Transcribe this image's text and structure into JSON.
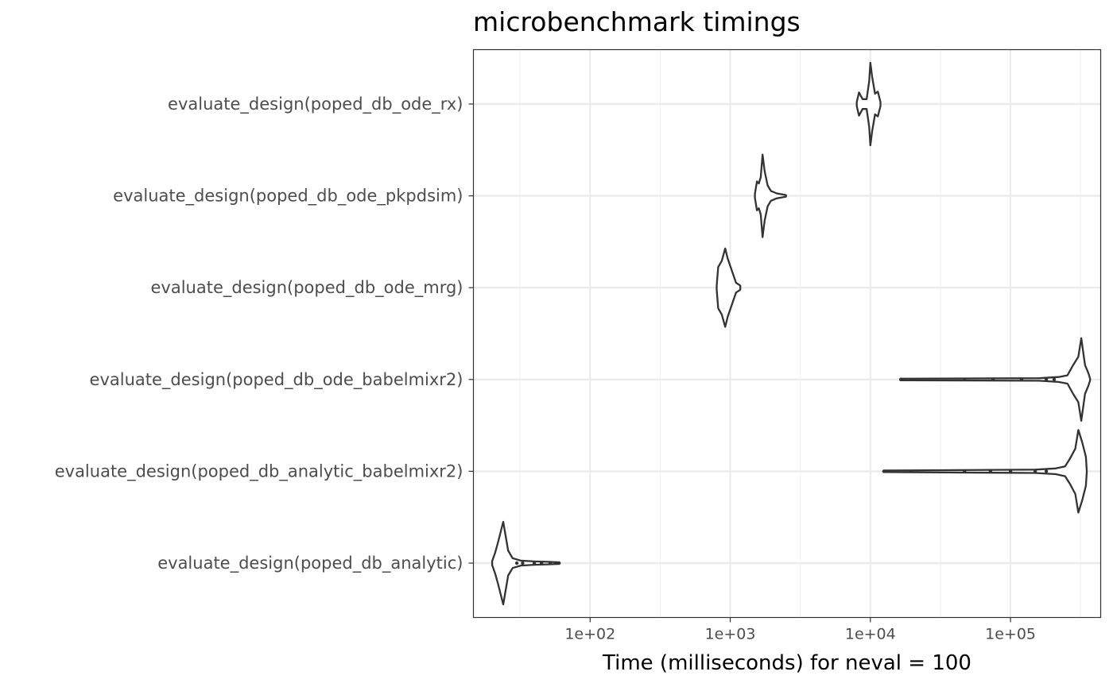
{
  "chart_data": {
    "type": "violin",
    "title": "microbenchmark timings",
    "xlabel": "Time (milliseconds) for neval = 100",
    "ylabel": "",
    "x_scale": "log10",
    "xlim": [
      14.7,
      440000
    ],
    "x_ticks": [
      100,
      1000,
      10000,
      100000
    ],
    "x_tick_labels": [
      "1e+02",
      "1e+03",
      "1e+04",
      "1e+05"
    ],
    "grid": true,
    "categories": [
      "evaluate_design(poped_db_ode_rx)",
      "evaluate_design(poped_db_ode_pkpdsim)",
      "evaluate_design(poped_db_ode_mrg)",
      "evaluate_design(poped_db_ode_babelmixr2)",
      "evaluate_design(poped_db_analytic_babelmixr2)",
      "evaluate_design(poped_db_analytic)"
    ],
    "series": [
      {
        "category": "evaluate_design(poped_db_ode_rx)",
        "min": 8000,
        "median": 10000,
        "max": 11800,
        "profile": [
          [
            8000,
            0.05
          ],
          [
            8300,
            0.28
          ],
          [
            8800,
            0.12
          ],
          [
            9400,
            0.12
          ],
          [
            9800,
            0.55
          ],
          [
            10000,
            1.0
          ],
          [
            10300,
            0.65
          ],
          [
            10800,
            0.25
          ],
          [
            11300,
            0.3
          ],
          [
            11800,
            0.05
          ]
        ]
      },
      {
        "category": "evaluate_design(poped_db_ode_pkpdsim)",
        "min": 1500,
        "median": 1700,
        "max": 2500,
        "profile": [
          [
            1500,
            0.05
          ],
          [
            1550,
            0.35
          ],
          [
            1600,
            0.3
          ],
          [
            1650,
            0.45
          ],
          [
            1700,
            1.0
          ],
          [
            1760,
            0.6
          ],
          [
            1850,
            0.25
          ],
          [
            1950,
            0.12
          ],
          [
            2150,
            0.06
          ],
          [
            2500,
            0.02
          ]
        ]
      },
      {
        "category": "evaluate_design(poped_db_ode_mrg)",
        "min": 800,
        "median": 920,
        "max": 1180,
        "profile": [
          [
            800,
            0.05
          ],
          [
            820,
            0.5
          ],
          [
            870,
            0.65
          ],
          [
            920,
            0.95
          ],
          [
            960,
            0.7
          ],
          [
            1030,
            0.4
          ],
          [
            1100,
            0.12
          ],
          [
            1180,
            0.05
          ]
        ]
      },
      {
        "category": "evaluate_design(poped_db_ode_babelmixr2)",
        "min": 16500,
        "median": 320000,
        "max": 370000,
        "outliers": [
          16500,
          47000,
          75000,
          120000,
          180000,
          205000
        ],
        "profile": [
          [
            16500,
            0.02
          ],
          [
            160000,
            0.03
          ],
          [
            220000,
            0.06
          ],
          [
            255000,
            0.1
          ],
          [
            280000,
            0.35
          ],
          [
            305000,
            0.55
          ],
          [
            320000,
            1.0
          ],
          [
            340000,
            0.35
          ],
          [
            360000,
            0.15
          ],
          [
            370000,
            0.02
          ]
        ]
      },
      {
        "category": "evaluate_design(poped_db_analytic_babelmixr2)",
        "min": 12500,
        "median": 300000,
        "max": 350000,
        "outliers": [
          12500,
          47000,
          72000,
          100000,
          150000,
          180000
        ],
        "profile": [
          [
            12500,
            0.02
          ],
          [
            150000,
            0.04
          ],
          [
            210000,
            0.07
          ],
          [
            245000,
            0.12
          ],
          [
            265000,
            0.3
          ],
          [
            290000,
            0.55
          ],
          [
            305000,
            1.0
          ],
          [
            325000,
            0.7
          ],
          [
            345000,
            0.35
          ],
          [
            350000,
            0.02
          ]
        ]
      },
      {
        "category": "evaluate_design(poped_db_analytic)",
        "min": 20,
        "median": 24,
        "max": 60,
        "outliers": [
          30,
          33,
          40,
          45,
          52,
          57,
          60
        ],
        "profile": [
          [
            20,
            0.05
          ],
          [
            21,
            0.25
          ],
          [
            22,
            0.5
          ],
          [
            24,
            1.0
          ],
          [
            26,
            0.3
          ],
          [
            28,
            0.12
          ],
          [
            32,
            0.06
          ],
          [
            40,
            0.04
          ],
          [
            50,
            0.03
          ],
          [
            60,
            0.02
          ]
        ]
      }
    ]
  },
  "colors": {
    "background": "#ffffff",
    "panel_border": "#333333",
    "grid_major": "#ebebeb",
    "grid_minor": "#f2f2f2",
    "violin_stroke": "#333333",
    "tick_text": "#4d4d4d"
  }
}
